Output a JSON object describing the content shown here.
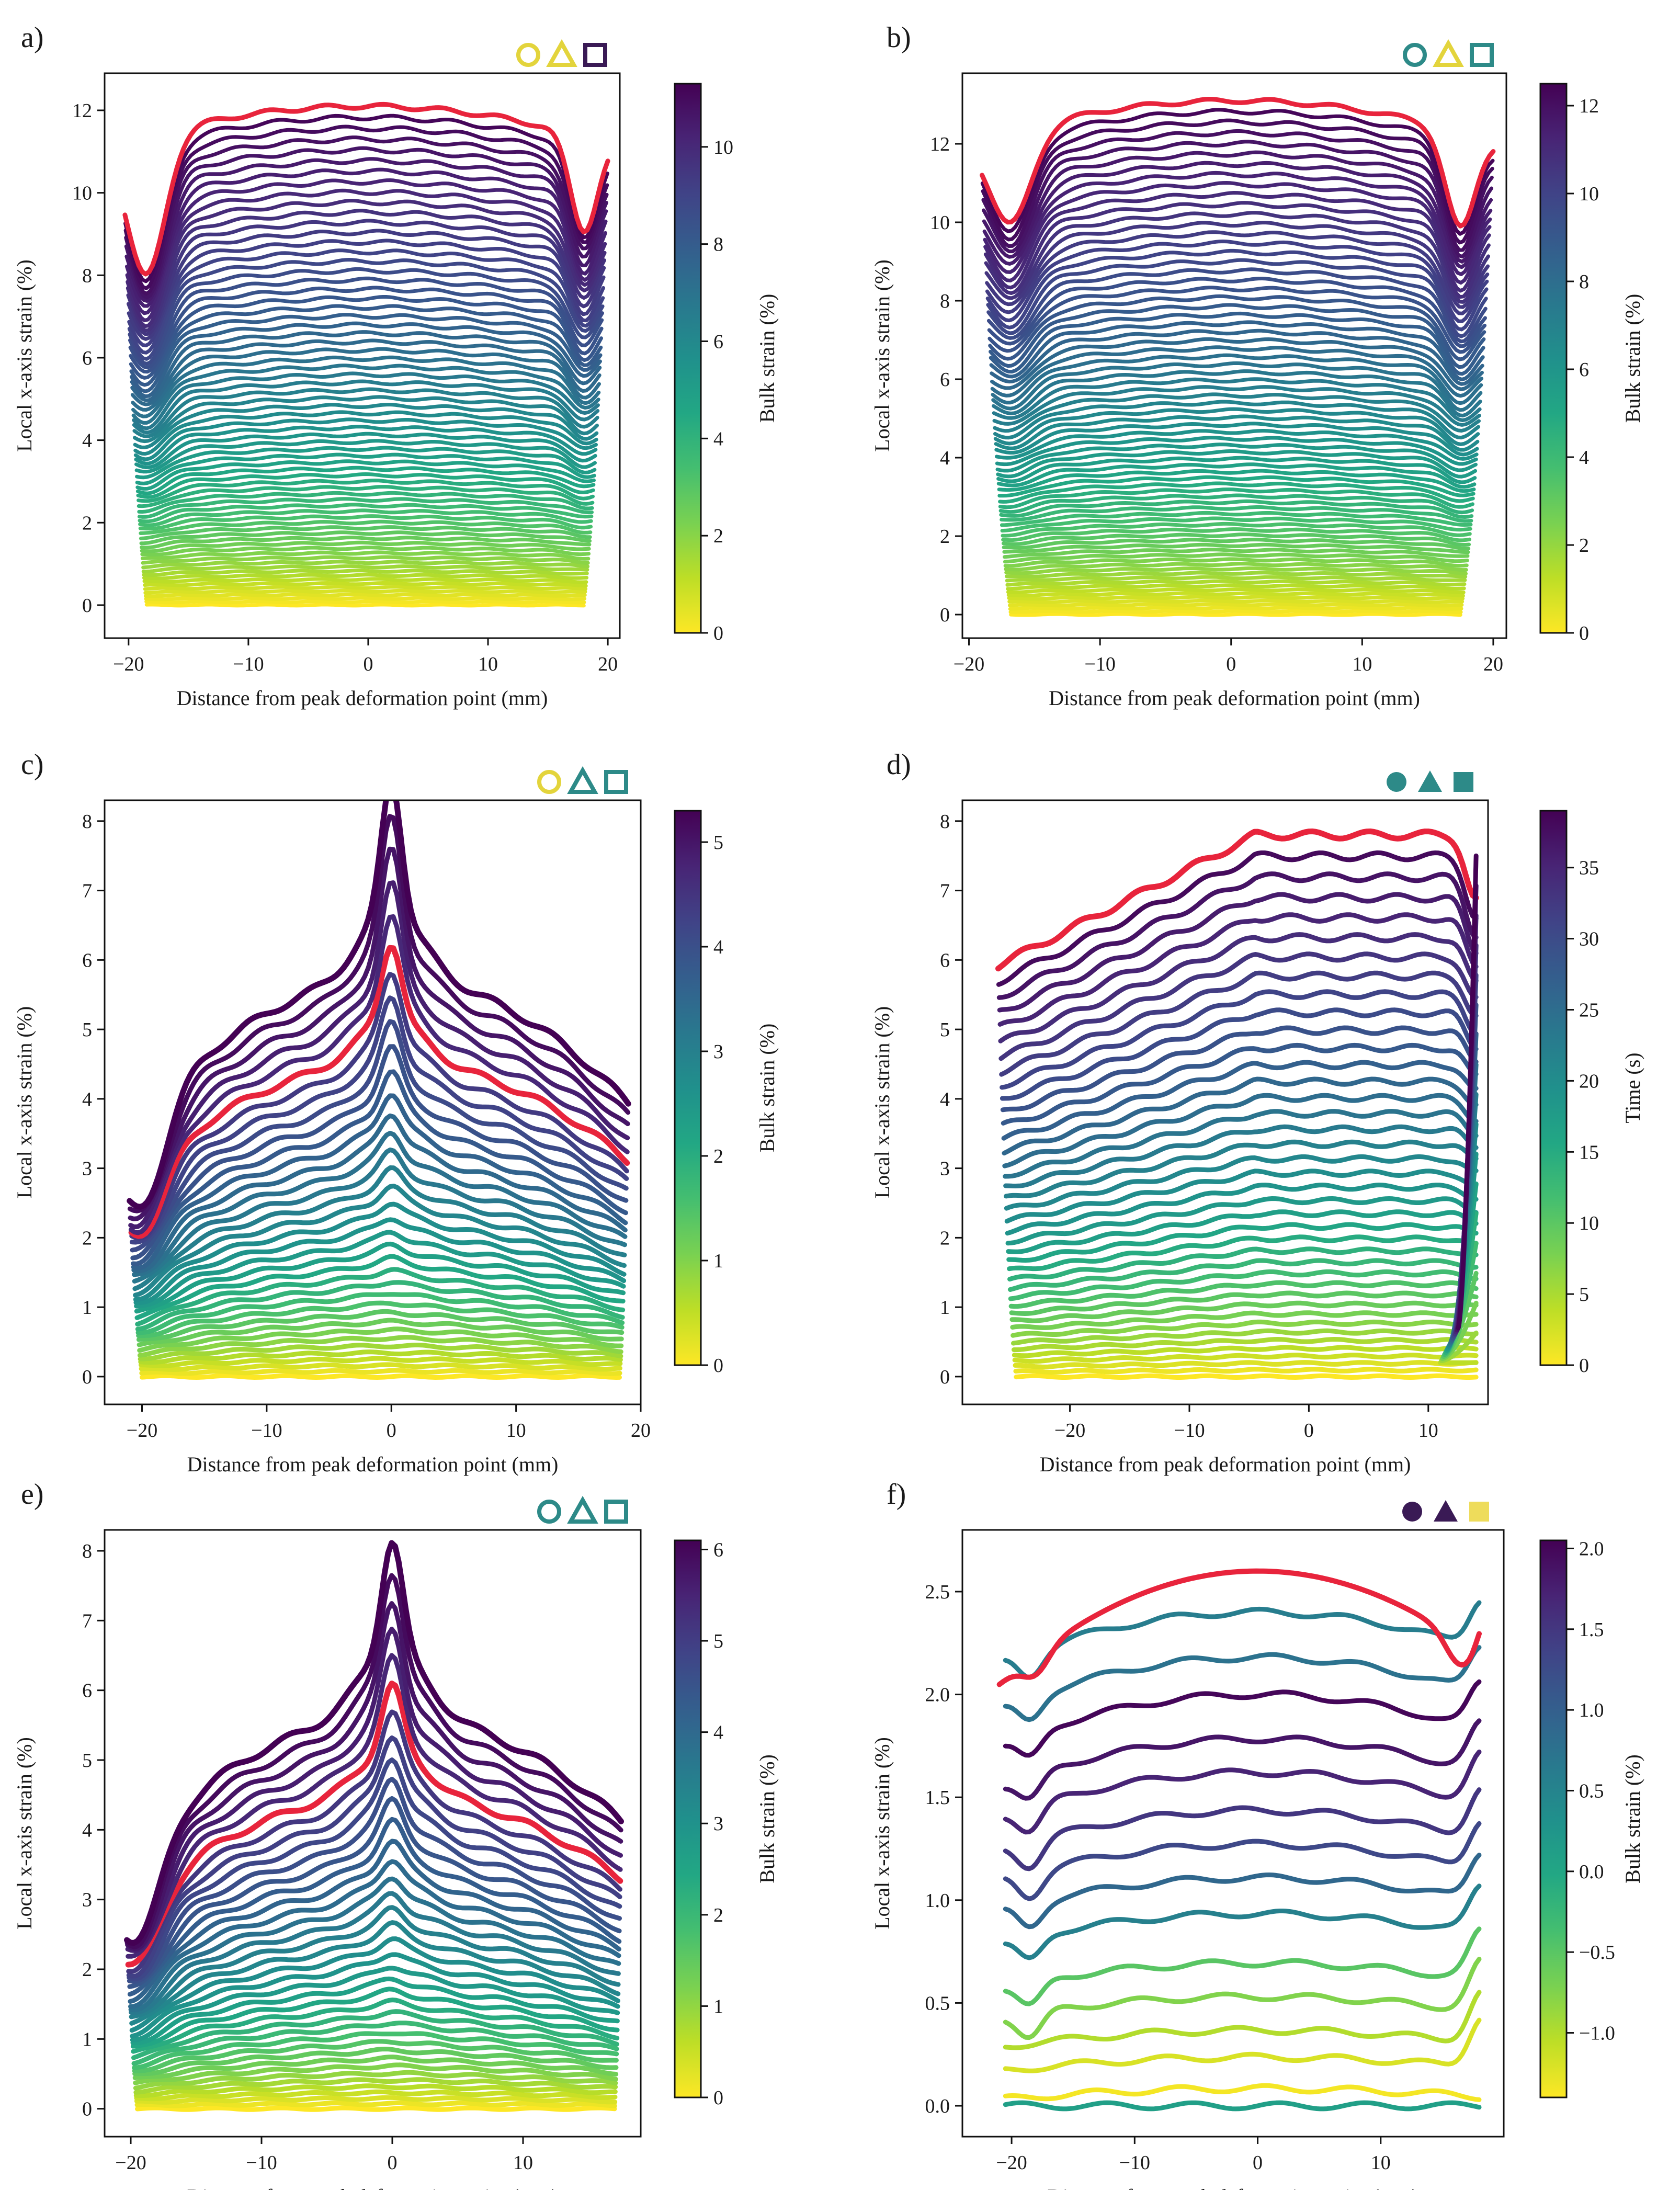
{
  "figure": {
    "x_label_common": "Distance from peak deformation point (mm)",
    "y_label_common": "Local x-axis strain (%)"
  },
  "chart_data": [
    {
      "panel": "a)",
      "type": "line",
      "profile": "plateau",
      "xlim": [
        -22,
        21
      ],
      "ylim": [
        -0.8,
        12.9
      ],
      "xticks": [
        -20,
        -10,
        0,
        10,
        20
      ],
      "xtick_labels": [
        "−20",
        "−10",
        "0",
        "10",
        "20"
      ],
      "yticks": [
        0,
        2,
        4,
        6,
        8,
        10,
        12
      ],
      "ytick_labels": [
        "0",
        "2",
        "4",
        "6",
        "8",
        "10",
        "12"
      ],
      "xlabel": "Distance from peak deformation point (mm)",
      "ylabel": "Local x-axis strain (%)",
      "colorbar": {
        "label": "Bulk strain (%)",
        "range": [
          0,
          11.3
        ],
        "ticks": [
          0,
          2,
          4,
          6,
          8,
          10
        ],
        "tick_labels": [
          "0",
          "2",
          "4",
          "6",
          "8",
          "10"
        ]
      },
      "series_count": 70,
      "x_start": [
        -18.5,
        -20.3
      ],
      "x_end": [
        18,
        20
      ],
      "max_strain": 12.1,
      "edge_dip": 3.6,
      "peak_height": 0,
      "highlight_color": "#e8243c",
      "markers": [
        {
          "shape": "circle",
          "filled": false,
          "color": "#e3d43c"
        },
        {
          "shape": "triangle",
          "filled": false,
          "color": "#e3d43c"
        },
        {
          "shape": "square",
          "filled": false,
          "color": "#3a1a55"
        }
      ]
    },
    {
      "panel": "b)",
      "type": "line",
      "profile": "plateau",
      "xlim": [
        -20.5,
        21
      ],
      "ylim": [
        -0.6,
        13.8
      ],
      "xticks": [
        -20,
        -10,
        0,
        10,
        20
      ],
      "xtick_labels": [
        "−20",
        "−10",
        "0",
        "10",
        "20"
      ],
      "yticks": [
        0,
        2,
        4,
        6,
        8,
        10,
        12
      ],
      "ytick_labels": [
        "0",
        "2",
        "4",
        "6",
        "8",
        "10",
        "12"
      ],
      "xlabel": "Distance from peak deformation point (mm)",
      "ylabel": "Local x-axis strain (%)",
      "colorbar": {
        "label": "Bulk strain (%)",
        "range": [
          0,
          12.5
        ],
        "ticks": [
          0,
          2,
          4,
          6,
          8,
          10,
          12
        ],
        "tick_labels": [
          "0",
          "2",
          "4",
          "6",
          "8",
          "10",
          "12"
        ]
      },
      "series_count": 74,
      "x_start": [
        -16.8,
        -19
      ],
      "x_end": [
        17.5,
        20
      ],
      "max_strain": 13.1,
      "edge_dip": 2.5,
      "peak_height": 0,
      "highlight_color": "#e8243c",
      "markers": [
        {
          "shape": "circle",
          "filled": false,
          "color": "#2d8a88"
        },
        {
          "shape": "triangle",
          "filled": false,
          "color": "#e3d43c"
        },
        {
          "shape": "square",
          "filled": false,
          "color": "#2d8a88"
        }
      ]
    },
    {
      "panel": "c)",
      "type": "line",
      "profile": "peaked",
      "xlim": [
        -23,
        20
      ],
      "ylim": [
        -0.4,
        8.3
      ],
      "xticks": [
        -20,
        -10,
        0,
        10,
        20
      ],
      "xtick_labels": [
        "−20",
        "−10",
        "0",
        "10",
        "20"
      ],
      "yticks": [
        0,
        1,
        2,
        3,
        4,
        5,
        6,
        7,
        8
      ],
      "ytick_labels": [
        "0",
        "1",
        "2",
        "3",
        "4",
        "5",
        "6",
        "7",
        "8"
      ],
      "xlabel": "Distance from peak deformation point (mm)",
      "ylabel": "Local x-axis strain (%)",
      "colorbar": {
        "label": "Bulk strain (%)",
        "range": [
          0,
          5.3
        ],
        "ticks": [
          0,
          1,
          2,
          3,
          4,
          5
        ],
        "tick_labels": [
          "0",
          "1",
          "2",
          "3",
          "4",
          "5"
        ]
      },
      "series_count": 36,
      "x_start": [
        -20,
        -21
      ],
      "x_end": [
        18.3,
        19
      ],
      "max_strain": 7.95,
      "edge_dip": 2.7,
      "peak_height": 1.9,
      "highlight_color": "#e8243c",
      "markers": [
        {
          "shape": "circle",
          "filled": false,
          "color": "#e3d43c"
        },
        {
          "shape": "triangle",
          "filled": false,
          "color": "#2d8a88"
        },
        {
          "shape": "square",
          "filled": false,
          "color": "#2d8a88"
        }
      ]
    },
    {
      "panel": "d)",
      "type": "line",
      "profile": "ramp",
      "xlim": [
        -29,
        15
      ],
      "ylim": [
        -0.4,
        8.3
      ],
      "xticks": [
        -20,
        -10,
        0,
        10
      ],
      "xtick_labels": [
        "−20",
        "−10",
        "0",
        "10"
      ],
      "yticks": [
        0,
        1,
        2,
        3,
        4,
        5,
        6,
        7,
        8
      ],
      "ytick_labels": [
        "0",
        "1",
        "2",
        "3",
        "4",
        "5",
        "6",
        "7",
        "8"
      ],
      "xlabel": "Distance from peak deformation point (mm)",
      "ylabel": "Local x-axis strain (%)",
      "colorbar": {
        "label": "Time (s)",
        "range": [
          0,
          39
        ],
        "ticks": [
          0,
          5,
          10,
          15,
          20,
          25,
          30,
          35
        ],
        "tick_labels": [
          "0",
          "5",
          "10",
          "15",
          "20",
          "25",
          "30",
          "35"
        ]
      },
      "series_count": 40,
      "x_start": [
        -24.5,
        -26
      ],
      "x_end": [
        14,
        14
      ],
      "max_strain": 7.8,
      "edge_dip": 3.2,
      "peak_height": 0,
      "highlight_color": "#e8243c",
      "markers": [
        {
          "shape": "circle",
          "filled": true,
          "color": "#2d8a88"
        },
        {
          "shape": "triangle",
          "filled": true,
          "color": "#2d8a88"
        },
        {
          "shape": "square",
          "filled": true,
          "color": "#2d8a88"
        }
      ]
    },
    {
      "panel": "e)",
      "type": "line",
      "profile": "peaked",
      "xlim": [
        -22,
        19
      ],
      "ylim": [
        -0.4,
        8.3
      ],
      "xticks": [
        -20,
        -10,
        0,
        10
      ],
      "xtick_labels": [
        "−20",
        "−10",
        "0",
        "10"
      ],
      "yticks": [
        0,
        1,
        2,
        3,
        4,
        5,
        6,
        7,
        8
      ],
      "ytick_labels": [
        "0",
        "1",
        "2",
        "3",
        "4",
        "5",
        "6",
        "7",
        "8"
      ],
      "xlabel": "Distance from peak deformation point (mm)",
      "ylabel": "Local x-axis strain (%)",
      "colorbar": {
        "label": "Bulk strain (%)",
        "range": [
          0,
          6.1
        ],
        "ticks": [
          0,
          1,
          2,
          3,
          4,
          5,
          6
        ],
        "tick_labels": [
          "0",
          "1",
          "2",
          "3",
          "4",
          "5",
          "6"
        ]
      },
      "series_count": 38,
      "x_start": [
        -19.5,
        -20.3
      ],
      "x_end": [
        17,
        17.5
      ],
      "max_strain": 7.8,
      "edge_dip": 1.8,
      "peak_height": 1.6,
      "highlight_color": "#e8243c",
      "markers": [
        {
          "shape": "circle",
          "filled": false,
          "color": "#2d8a88"
        },
        {
          "shape": "triangle",
          "filled": false,
          "color": "#2d8a88"
        },
        {
          "shape": "square",
          "filled": false,
          "color": "#2d8a88"
        }
      ]
    },
    {
      "panel": "f)",
      "type": "line",
      "profile": "cupped",
      "xlim": [
        -24,
        20
      ],
      "ylim": [
        -0.15,
        2.8
      ],
      "xticks": [
        -20,
        -10,
        0,
        10
      ],
      "xtick_labels": [
        "−20",
        "−10",
        "0",
        "10"
      ],
      "yticks": [
        0.0,
        0.5,
        1.0,
        1.5,
        2.0,
        2.5
      ],
      "ytick_labels": [
        "0.0",
        "0.5",
        "1.0",
        "1.5",
        "2.0",
        "2.5"
      ],
      "xlabel": "Distance from peak deformation point (mm)",
      "ylabel": "Local x-axis strain (%)",
      "colorbar": {
        "label": "Bulk strain (%)",
        "range": [
          -1.4,
          2.05
        ],
        "ticks": [
          -1.0,
          -0.5,
          0.0,
          0.5,
          1.0,
          1.5,
          2.0
        ],
        "tick_labels": [
          "−1.0",
          "−0.5",
          "0.0",
          "0.5",
          "1.0",
          "1.5",
          "2.0"
        ]
      },
      "series": [
        {
          "offset": 0.0,
          "bulk": 0.1
        },
        {
          "offset": 0.04,
          "bulk": -1.35
        },
        {
          "offset": 0.18,
          "bulk": -1.2
        },
        {
          "offset": 0.3,
          "bulk": -1.0
        },
        {
          "offset": 0.45,
          "bulk": -0.75
        },
        {
          "offset": 0.6,
          "bulk": -0.5
        },
        {
          "offset": 0.82,
          "bulk": 0.55
        },
        {
          "offset": 0.98,
          "bulk": 0.9
        },
        {
          "offset": 1.13,
          "bulk": 1.3
        },
        {
          "offset": 1.28,
          "bulk": 1.5
        },
        {
          "offset": 1.45,
          "bulk": 1.7
        },
        {
          "offset": 1.6,
          "bulk": 1.85
        },
        {
          "offset": 1.8,
          "bulk": 2.0
        },
        {
          "offset": 1.98,
          "bulk": 0.75
        },
        {
          "offset": 2.2,
          "bulk": 0.6
        }
      ],
      "highlight": {
        "offset": 2.4
      },
      "x_start": [
        -20.5,
        -21
      ],
      "x_end": [
        17.5,
        18
      ],
      "max_strain": 2.62,
      "edge_dip": 0,
      "peak_height": 0,
      "highlight_color": "#e8243c",
      "markers": [
        {
          "shape": "circle",
          "filled": true,
          "color": "#3a1a55"
        },
        {
          "shape": "triangle",
          "filled": true,
          "color": "#3a1a55"
        },
        {
          "shape": "square",
          "filled": true,
          "color": "#eedc5b"
        }
      ]
    }
  ]
}
